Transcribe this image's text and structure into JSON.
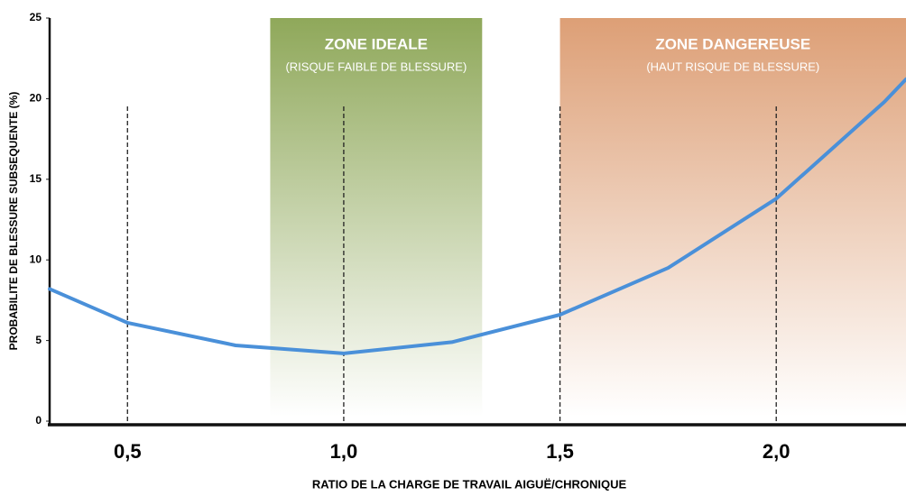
{
  "chart_data": {
    "type": "line",
    "xlabel": "RATIO DE LA CHARGE DE TRAVAIL AIGUË/CHRONIQUE",
    "ylabel": "PROBABILITE DE BLESSURE SUBSEQUENTE (%)",
    "series": [
      {
        "color": "#4a90d9",
        "x": [
          0.32,
          0.5,
          0.75,
          1.0,
          1.25,
          1.5,
          1.75,
          2.0,
          2.25,
          2.3
        ],
        "values": [
          8.2,
          6.1,
          4.7,
          4.2,
          4.9,
          6.6,
          9.5,
          13.8,
          19.8,
          21.2
        ]
      }
    ],
    "xlim": [
      0.32,
      2.3
    ],
    "ylim": [
      0,
      25
    ],
    "xticks": [
      {
        "value": 0.5,
        "label": "0,5"
      },
      {
        "value": 1.0,
        "label": "1,0"
      },
      {
        "value": 1.5,
        "label": "1,5"
      },
      {
        "value": 2.0,
        "label": "2,0"
      }
    ],
    "yticks": [
      0,
      5,
      10,
      15,
      20,
      25
    ],
    "zones": [
      {
        "title": "ZONE IDEALE",
        "subtitle": "(RISQUE FAIBLE DE BLESSURE)",
        "range": [
          0.83,
          1.32
        ],
        "color": "#8fa85a"
      },
      {
        "title": "ZONE DANGEREUSE",
        "subtitle": "(HAUT RISQUE DE BLESSURE)",
        "range": [
          1.5,
          2.3
        ],
        "color": "#dd9f76"
      }
    ]
  }
}
